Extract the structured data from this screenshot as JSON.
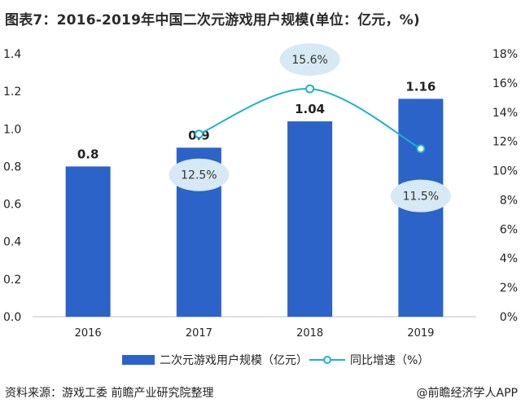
{
  "title": "图表7：2016-2019年中国二次元游戏用户规模(单位：亿元，%)",
  "chart_data": {
    "type": "bar",
    "categories": [
      "2016",
      "2017",
      "2018",
      "2019"
    ],
    "series": [
      {
        "name": "二次元游戏用户规模（亿元）",
        "type": "bar",
        "axis": "left",
        "values": [
          0.8,
          0.9,
          1.04,
          1.16
        ],
        "labels": [
          "0.8",
          "0.9",
          "1.04",
          "1.16"
        ],
        "color": "#2b63c9"
      },
      {
        "name": "同比增速（%）",
        "type": "line",
        "axis": "right",
        "values": [
          null,
          12.5,
          15.6,
          11.5
        ],
        "labels": [
          "",
          "12.5%",
          "15.6%",
          "11.5%"
        ],
        "color": "#1cb0d6"
      }
    ],
    "y_left": {
      "min": 0,
      "max": 1.4,
      "ticks": [
        "0.0",
        "0.2",
        "0.4",
        "0.6",
        "0.8",
        "1.0",
        "1.2",
        "1.4"
      ]
    },
    "y_right": {
      "min": 0,
      "max": 18,
      "ticks": [
        "0%",
        "2%",
        "4%",
        "6%",
        "8%",
        "10%",
        "12%",
        "14%",
        "16%",
        "18%"
      ]
    },
    "grid": false,
    "legend_position": "bottom"
  },
  "legend": {
    "bar_label": "二次元游戏用户规模（亿元）",
    "line_label": "同比增速（%）"
  },
  "footer": {
    "source": "资料来源：游戏工委 前瞻产业研究院整理",
    "brand": "@前瞻经济学人APP"
  },
  "colors": {
    "bar": "#2b63c9",
    "line": "#1cb0d6",
    "bubble": "#d6e9f4"
  }
}
